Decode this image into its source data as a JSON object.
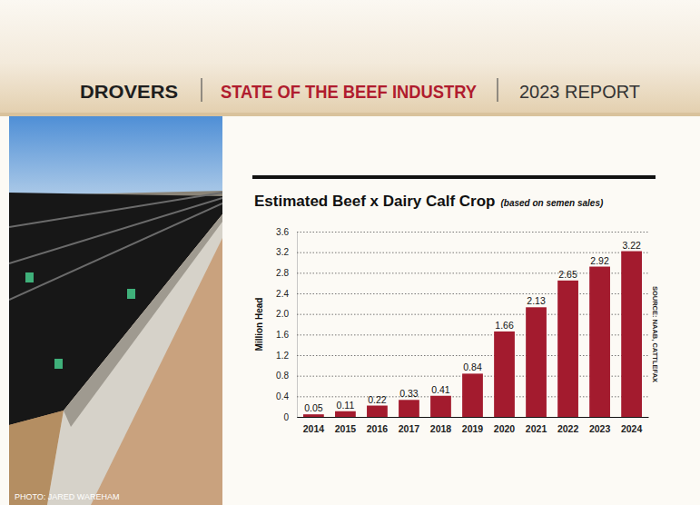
{
  "header": {
    "brand": "DROVERS",
    "section": "STATE OF THE BEEF INDUSTRY",
    "report": "2023 REPORT"
  },
  "photo_credit": "PHOTO: JARED WAREHAM",
  "chart_data": {
    "type": "bar",
    "title": "Estimated Beef x Dairy Calf Crop",
    "subtitle": "(based on semen sales)",
    "y_label": "Million Head",
    "source": "SOURCE: NAAB, CATTLEFAX",
    "categories": [
      "2014",
      "2015",
      "2016",
      "2017",
      "2018",
      "2019",
      "2020",
      "2021",
      "2022",
      "2023",
      "2024"
    ],
    "values": [
      0.05,
      0.11,
      0.22,
      0.33,
      0.41,
      0.84,
      1.66,
      2.13,
      2.65,
      2.92,
      3.22
    ],
    "color": "#a31b2e",
    "ylim": [
      0,
      3.6
    ],
    "yticks": [
      0,
      0.4,
      0.8,
      1.2,
      1.6,
      {
        "value": 2,
        "label": "2.0"
      },
      2.4,
      2.8,
      3.2,
      3.6
    ],
    "grid": true,
    "data_labels": true
  }
}
